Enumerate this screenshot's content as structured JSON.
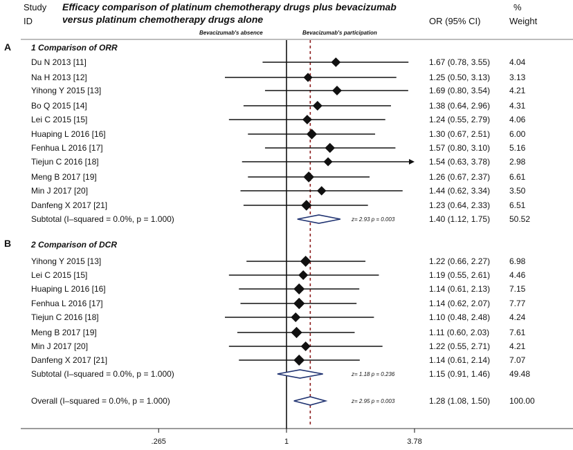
{
  "chart_data": {
    "type": "forest",
    "title_line1": "Efficacy comparison of platinum chemotherapy drugs plus bevacizumab",
    "title_line2": "versus platinum chemotherapy drugs alone",
    "headers": {
      "study": "Study",
      "id": "ID",
      "or": "OR (95% CI)",
      "pct": "%",
      "weight": "Weight"
    },
    "direction_labels": {
      "left": "Bevacizumab's absence",
      "right": "Bevacizumab's participation"
    },
    "x_scale": "log",
    "xlim": [
      0.2,
      4.6
    ],
    "x_ticks": [
      {
        "value": 0.265,
        "label": ".265"
      },
      {
        "value": 1,
        "label": "1"
      },
      {
        "value": 3.78,
        "label": "3.78"
      }
    ],
    "overall_line_x": 1.28,
    "sections": [
      {
        "panel": "A",
        "title": "1  Comparison of ORR",
        "studies": [
          {
            "label": "Du N 2013 [11]",
            "or": 1.67,
            "lo": 0.78,
            "hi": 3.55,
            "ci_text": "1.67 (0.78, 3.55)",
            "weight_text": "4.04",
            "weight": 4.04
          },
          {
            "label": "Na H 2013 [12]",
            "or": 1.25,
            "lo": 0.5,
            "hi": 3.13,
            "ci_text": "1.25 (0.50, 3.13)",
            "weight_text": "3.13",
            "weight": 3.13
          },
          {
            "label": "Yihong Y 2015 [13]",
            "or": 1.69,
            "lo": 0.8,
            "hi": 3.54,
            "ci_text": "1.69 (0.80, 3.54)",
            "weight_text": "4.21",
            "weight": 4.21
          },
          {
            "label": "Bo Q 2015 [14]",
            "or": 1.38,
            "lo": 0.64,
            "hi": 2.96,
            "ci_text": "1.38 (0.64, 2.96)",
            "weight_text": "4.31",
            "weight": 4.31
          },
          {
            "label": "Lei C 2015 [15]",
            "or": 1.24,
            "lo": 0.55,
            "hi": 2.79,
            "ci_text": "1.24 (0.55, 2.79)",
            "weight_text": "4.06",
            "weight": 4.06
          },
          {
            "label": "Huaping L 2016 [16]",
            "or": 1.3,
            "lo": 0.67,
            "hi": 2.51,
            "ci_text": "1.30 (0.67, 2.51)",
            "weight_text": "6.00",
            "weight": 6.0
          },
          {
            "label": "Fenhua L 2016 [17]",
            "or": 1.57,
            "lo": 0.8,
            "hi": 3.1,
            "ci_text": "1.57 (0.80, 3.10)",
            "weight_text": "5.16",
            "weight": 5.16
          },
          {
            "label": "Tiejun C 2016 [18]",
            "or": 1.54,
            "lo": 0.63,
            "hi": 3.78,
            "ci_text": "1.54 (0.63, 3.78)",
            "weight_text": "2.98",
            "weight": 2.98,
            "arrow": true
          },
          {
            "label": "Meng B 2017 [19]",
            "or": 1.26,
            "lo": 0.67,
            "hi": 2.37,
            "ci_text": "1.26 (0.67, 2.37)",
            "weight_text": "6.61",
            "weight": 6.61
          },
          {
            "label": "Min J 2017 [20]",
            "or": 1.44,
            "lo": 0.62,
            "hi": 3.34,
            "ci_text": "1.44 (0.62, 3.34)",
            "weight_text": "3.50",
            "weight": 3.5
          },
          {
            "label": "Danfeng X 2017 [21]",
            "or": 1.23,
            "lo": 0.64,
            "hi": 2.33,
            "ci_text": "1.23 (0.64, 2.33)",
            "weight_text": "6.51",
            "weight": 6.51
          }
        ],
        "subtotal": {
          "label": "Subtotal  (I–squared = 0.0%, p = 1.000)",
          "or": 1.4,
          "lo": 1.12,
          "hi": 1.75,
          "stat_text": "z=  2.93   p = 0.003",
          "ci_text": "1.40 (1.12, 1.75)",
          "weight_text": "50.52"
        }
      },
      {
        "panel": "B",
        "title": "2  Comparison of DCR",
        "studies": [
          {
            "label": "Yihong Y 2015 [13]",
            "or": 1.22,
            "lo": 0.66,
            "hi": 2.27,
            "ci_text": "1.22 (0.66, 2.27)",
            "weight_text": "6.98",
            "weight": 6.98
          },
          {
            "label": "Lei C 2015 [15]",
            "or": 1.19,
            "lo": 0.55,
            "hi": 2.61,
            "ci_text": "1.19 (0.55, 2.61)",
            "weight_text": "4.46",
            "weight": 4.46
          },
          {
            "label": "Huaping L 2016 [16]",
            "or": 1.14,
            "lo": 0.61,
            "hi": 2.13,
            "ci_text": "1.14 (0.61, 2.13)",
            "weight_text": "7.15",
            "weight": 7.15
          },
          {
            "label": "Fenhua L 2016 [17]",
            "or": 1.14,
            "lo": 0.62,
            "hi": 2.07,
            "ci_text": "1.14 (0.62, 2.07)",
            "weight_text": "7.77",
            "weight": 7.77
          },
          {
            "label": "Tiejun C 2016 [18]",
            "or": 1.1,
            "lo": 0.48,
            "hi": 2.48,
            "ci_text": "1.10 (0.48, 2.48)",
            "weight_text": "4.24",
            "weight": 4.24
          },
          {
            "label": "Meng B 2017 [19]",
            "or": 1.11,
            "lo": 0.6,
            "hi": 2.03,
            "ci_text": "1.11 (0.60, 2.03)",
            "weight_text": "7.61",
            "weight": 7.61
          },
          {
            "label": "Min J 2017 [20]",
            "or": 1.22,
            "lo": 0.55,
            "hi": 2.71,
            "ci_text": "1.22 (0.55, 2.71)",
            "weight_text": "4.21",
            "weight": 4.21
          },
          {
            "label": "Danfeng X 2017 [21]",
            "or": 1.14,
            "lo": 0.61,
            "hi": 2.14,
            "ci_text": "1.14 (0.61, 2.14)",
            "weight_text": "7.07",
            "weight": 7.07
          }
        ],
        "subtotal": {
          "label": "Subtotal  (I–squared = 0.0%, p = 1.000)",
          "or": 1.15,
          "lo": 0.91,
          "hi": 1.46,
          "stat_text": "z=  1.18   p = 0.236",
          "ci_text": "1.15 (0.91, 1.46)",
          "weight_text": "49.48"
        }
      }
    ],
    "overall": {
      "label": "Overall  (I–squared = 0.0%, p = 1.000)",
      "or": 1.28,
      "lo": 1.08,
      "hi": 1.5,
      "stat_text": "z=  2.95   p = 0.003",
      "ci_text": "1.28 (1.08, 1.50)",
      "weight_text": "100.00"
    },
    "colors": {
      "ink": "#111111",
      "diamond_stroke": "#1e3170",
      "ref_line": "#8b1a1a",
      "axis_line": "#7a7a7a"
    }
  }
}
